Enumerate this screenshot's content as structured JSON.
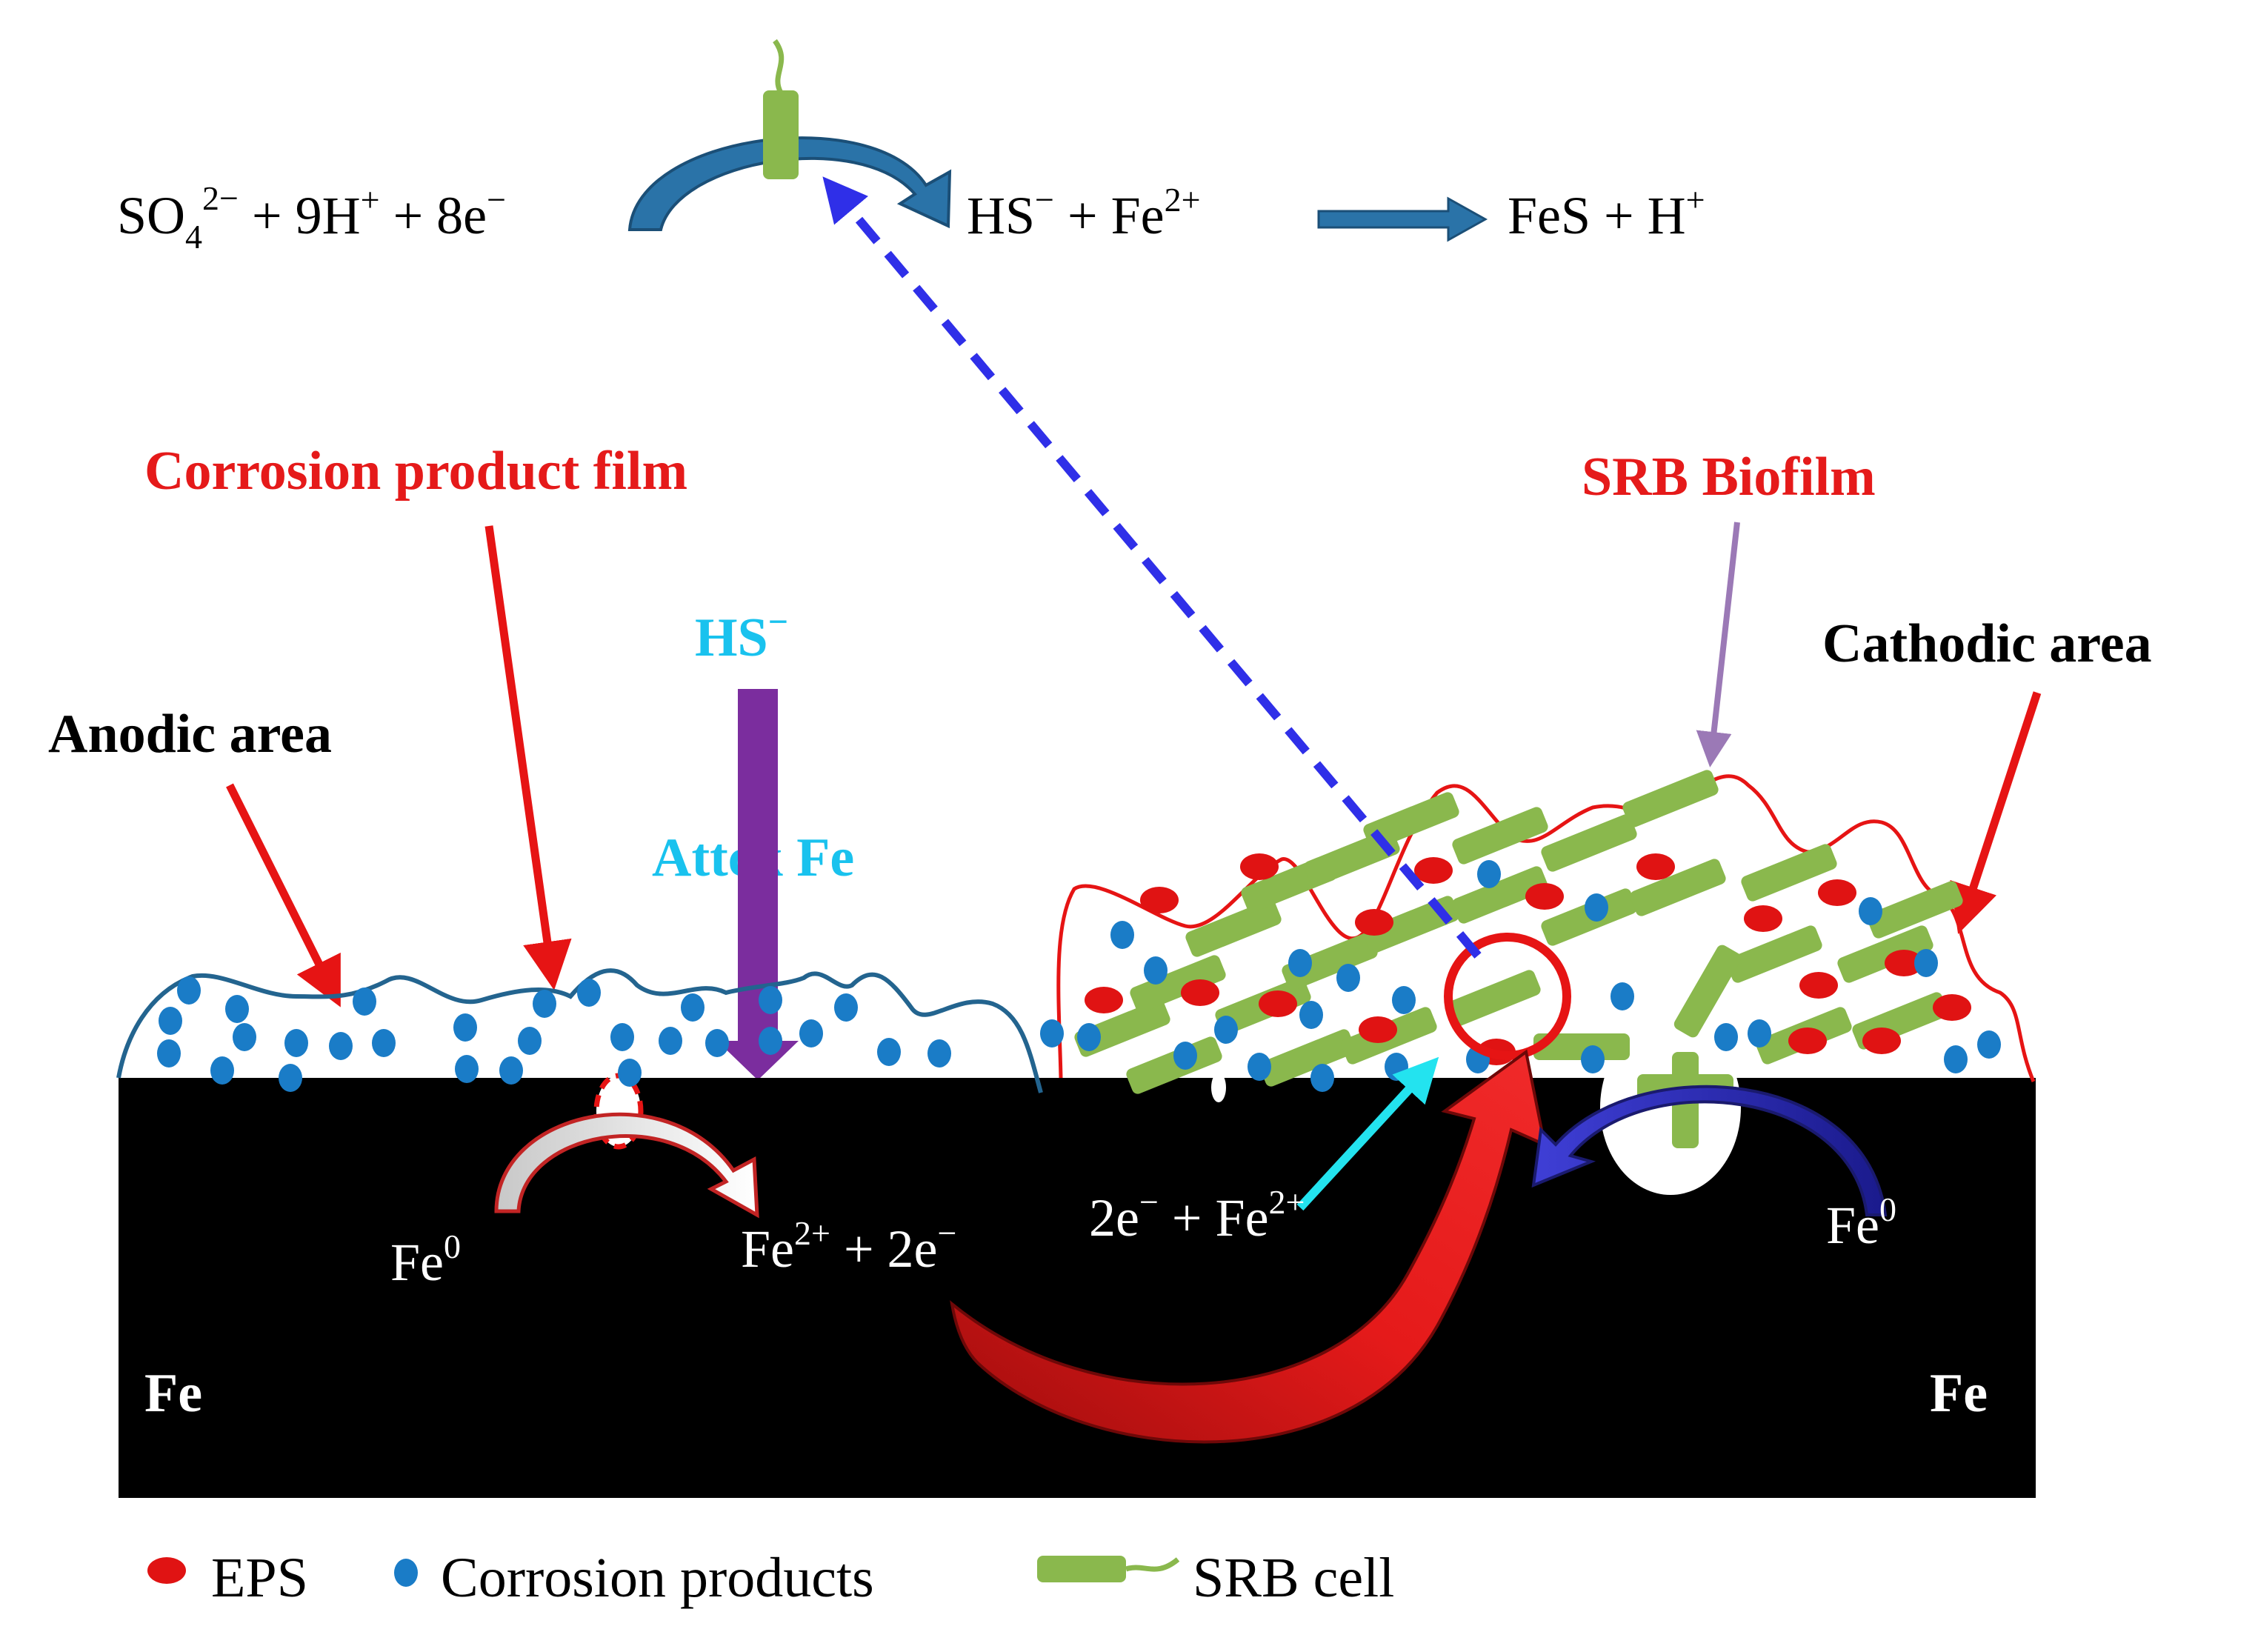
{
  "colors": {
    "steel": "#000000",
    "corrosion_product": "#1a7cc7",
    "eps": "#e01313",
    "srb_cell": "#8ab84d",
    "film_line": "#23648f",
    "biofilm_line": "#e61414",
    "reaction_arrow": "#2a73a8",
    "dashed_arrow": "#2f2fe8",
    "hs_arrow": "#7b2d9e",
    "cyan_label": "#19c2ee",
    "red_label": "#e51a1a",
    "pointer_purple": "#9b79b6",
    "cyan_arrow": "#23e3ef"
  },
  "reaction": {
    "reactant_so4": "SO",
    "reactant_so4_sub": "4",
    "reactant_so4_sup": "2−",
    "reactant_rest": " + 9H",
    "reactant_h_sup": "+",
    "reactant_e": " + 8e",
    "reactant_e_sup": "−",
    "product_hs": "HS",
    "product_hs_sup": "−",
    "product_fe": " +  Fe",
    "product_fe_sup": "2+",
    "final_fes": "FeS + H",
    "final_h_sup": "+"
  },
  "labels": {
    "corrosion_product_film": "Corrosion product film",
    "srb_biofilm": "SRB Biofilm",
    "hs": "HS",
    "hs_sup": "−",
    "attack_fe": "Attck Fe",
    "anodic_area": "Anodic area",
    "cathodic_area": "Cathodic area"
  },
  "metal": {
    "fe_left": "Fe",
    "fe_right": "Fe",
    "fe0_left": "Fe",
    "fe0_left_sup": "0",
    "fe_oxidized": "Fe",
    "fe_oxidized_sup": "2+",
    "fe_oxidized_rest": " + 2e",
    "fe_oxidized_e_sup": "−",
    "electron_transfer": "2e",
    "electron_transfer_sup": "−",
    "electron_transfer_rest": " + Fe",
    "electron_transfer_fe_sup": "2+",
    "fe0_right": "Fe",
    "fe0_right_sup": "0"
  },
  "legend": {
    "eps": "EPS",
    "corrosion_products": "Corrosion products",
    "srb_cell": "SRB cell"
  }
}
